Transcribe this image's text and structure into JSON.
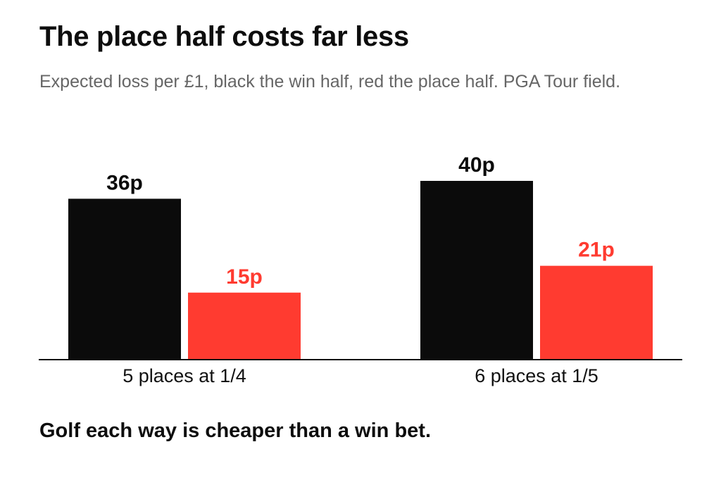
{
  "header": {
    "title": "The place half costs far less",
    "subtitle": "Expected loss per £1, black the win half, red the place half. PGA Tour field."
  },
  "footer": {
    "note": "Golf each way is cheaper than a win bet."
  },
  "colors": {
    "win": "#0b0b0b",
    "place": "#ff3b30",
    "axis": "#111111",
    "category_text": "#111111"
  },
  "chart_data": {
    "type": "bar",
    "title": "The place half costs far less",
    "subtitle": "Expected loss per £1, black the win half, red the place half. PGA Tour field.",
    "categories": [
      "5 places at 1/4",
      "6 places at 1/5"
    ],
    "unit_suffix": "p",
    "series": [
      {
        "key": "win",
        "values": [
          36,
          40
        ],
        "labels": [
          "36p",
          "40p"
        ]
      },
      {
        "key": "place",
        "values": [
          15,
          21
        ],
        "labels": [
          "15p",
          "21p"
        ]
      }
    ],
    "ylim": [
      0,
      50
    ],
    "grid": false,
    "legend": "none"
  }
}
